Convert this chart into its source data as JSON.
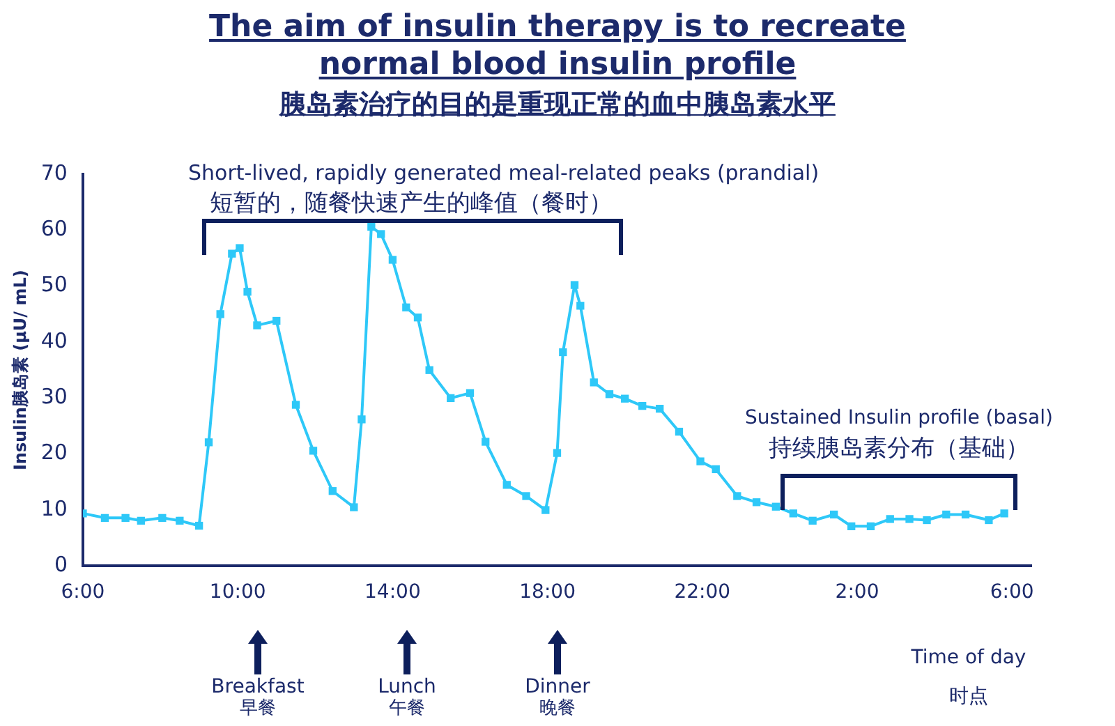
{
  "chart_data": {
    "type": "line",
    "title": "The aim of insulin therapy is to recreate\nnormal blood insulin profile",
    "subtitle": "胰岛素治疗的目的是重现正常的血中胰岛素水平",
    "xlabel": "Time of day\n时点",
    "ylabel": "Insulin胰岛素 (μU/ mL)",
    "x": [
      "2000-01-01T06:00",
      "2000-01-01T06:34",
      "2000-01-01T07:06",
      "2000-01-01T07:30",
      "2000-01-01T08:03",
      "2000-01-01T08:30",
      "2000-01-01T09:00",
      "2000-01-01T09:15",
      "2000-01-01T09:33",
      "2000-01-01T09:51",
      "2000-01-01T10:03",
      "2000-01-01T10:15",
      "2000-01-01T10:30",
      "2000-01-01T11:00",
      "2000-01-01T11:30",
      "2000-01-01T11:57",
      "2000-01-01T12:27",
      "2000-01-01T13:00",
      "2000-01-01T13:12",
      "2000-01-01T13:27",
      "2000-01-01T13:42",
      "2000-01-01T14:00",
      "2000-01-01T14:21",
      "2000-01-01T14:39",
      "2000-01-01T14:57",
      "2000-01-01T15:30",
      "2000-01-01T16:00",
      "2000-01-01T16:24",
      "2000-01-01T16:57",
      "2000-01-01T17:27",
      "2000-01-01T17:57",
      "2000-01-01T18:15",
      "2000-01-01T18:24",
      "2000-01-01T18:42",
      "2000-01-01T18:51",
      "2000-01-01T19:12",
      "2000-01-01T19:36",
      "2000-01-01T20:00",
      "2000-01-01T20:27",
      "2000-01-01T20:54",
      "2000-01-01T21:24",
      "2000-01-01T21:57",
      "2000-01-01T22:21",
      "2000-01-01T22:54",
      "2000-01-01T23:24",
      "2000-01-01T23:54",
      "2000-01-02T00:21",
      "2000-01-02T00:51",
      "2000-01-02T01:24",
      "2000-01-02T01:51",
      "2000-01-02T02:21",
      "2000-01-02T02:51",
      "2000-01-02T03:21",
      "2000-01-02T03:48",
      "2000-01-02T04:18",
      "2000-01-02T04:48",
      "2000-01-02T05:24",
      "2000-01-02T05:48"
    ],
    "series": [
      {
        "color": "#2ec8f8",
        "values": [
          9.4,
          8.6,
          8.6,
          8.1,
          8.6,
          8.1,
          7.2,
          22.1,
          45,
          55.8,
          56.8,
          49,
          43,
          43.8,
          28.8,
          20.6,
          13.4,
          10.5,
          26.2,
          60.6,
          59.3,
          54.7,
          46.2,
          44.4,
          35,
          30,
          30.9,
          22.2,
          14.5,
          12.5,
          10,
          20.2,
          38.2,
          50.2,
          46.5,
          32.8,
          30.7,
          29.9,
          28.6,
          28.1,
          24,
          18.7,
          17.3,
          12.5,
          11.4,
          10.6,
          9.4,
          8.1,
          9.2,
          7.1,
          7.1,
          8.4,
          8.4,
          8.2,
          9.2,
          9.2,
          8.2,
          9.4
        ]
      }
    ],
    "xlim": [
      "2000-01-01T06:00",
      "2000-01-02T06:30"
    ],
    "xticks": [
      {
        "value": "2000-01-01T06:00",
        "label": "6:00"
      },
      {
        "value": "2000-01-01T10:00",
        "label": "10:00"
      },
      {
        "value": "2000-01-01T14:00",
        "label": "14:00"
      },
      {
        "value": "2000-01-01T18:00",
        "label": "18:00"
      },
      {
        "value": "2000-01-01T22:00",
        "label": "22:00"
      },
      {
        "value": "2000-01-02T02:00",
        "label": "2:00"
      },
      {
        "value": "2000-01-02T06:00",
        "label": "6:00"
      }
    ],
    "ylim": [
      0,
      70
    ],
    "yticks": [
      0,
      10,
      20,
      30,
      40,
      50,
      60,
      70
    ],
    "grid": false,
    "legend": false,
    "marker": "square",
    "line_style": "solid",
    "annotations": [
      "Short-lived, rapidly generated meal-related peaks (prandial)\n短暂的，随餐快速产生的峰值（餐时）",
      "Sustained Insulin profile (basal)\n持续胰岛素分布（基础）",
      "Breakfast\n早餐",
      "Lunch\n午餐",
      "Dinner\n晚餐"
    ]
  }
}
